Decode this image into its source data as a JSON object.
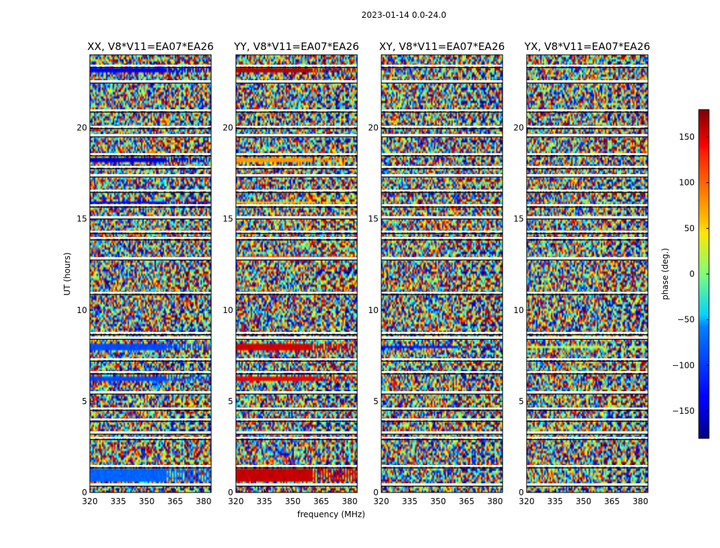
{
  "title": "2023-01-14 0.0-24.0",
  "chart_data": {
    "type": "heatmap",
    "xlabel": "frequency (MHz)",
    "ylabel": "UT (hours)",
    "xlim": [
      320,
      384
    ],
    "ylim": [
      0,
      24
    ],
    "x_ticks": [
      320,
      335,
      350,
      365,
      380
    ],
    "x_tick_labels": [
      "320",
      "335",
      "350",
      "365",
      "380"
    ],
    "y_ticks": [
      0,
      5,
      10,
      15,
      20
    ],
    "y_tick_labels": [
      "0",
      "5",
      "10",
      "15",
      "20"
    ],
    "panels": [
      {
        "title": "XX, V8*V11=EA07*EA26",
        "pol": "XX",
        "coherent_bands": [
          [
            0.6,
            1.3,
            -100
          ],
          [
            6.1,
            6.3,
            -110
          ],
          [
            7.8,
            8.2,
            -110
          ],
          [
            15.8,
            16.0,
            -135
          ],
          [
            18.1,
            18.3,
            -150
          ],
          [
            23.1,
            23.3,
            -140
          ]
        ]
      },
      {
        "title": "YY, V8*V11=EA07*EA26",
        "pol": "YY",
        "coherent_bands": [
          [
            0.6,
            1.3,
            155
          ],
          [
            6.1,
            6.3,
            140
          ],
          [
            7.8,
            8.2,
            150
          ],
          [
            12.7,
            12.9,
            110
          ],
          [
            15.8,
            16.0,
            70
          ],
          [
            18.1,
            18.3,
            80
          ],
          [
            23.1,
            23.3,
            160
          ]
        ]
      },
      {
        "title": "XY, V8*V11=EA07*EA26",
        "pol": "XY",
        "coherent_bands": [
          [
            7.9,
            8.1,
            -130
          ]
        ]
      },
      {
        "title": "YX, V8*V11=EA07*EA26",
        "pol": "YX",
        "coherent_bands": [
          [
            7.9,
            8.1,
            20
          ]
        ]
      }
    ],
    "data_gaps_hours": [
      0.45,
      1.45,
      3.0,
      3.3,
      4.0,
      4.6,
      5.5,
      6.6,
      7.3,
      8.5,
      8.75,
      10.95,
      12.85,
      13.95,
      14.3,
      15.1,
      15.75,
      16.55,
      17.4,
      17.85,
      18.55,
      19.6,
      20.05,
      20.95,
      22.55,
      23.4
    ],
    "colorbar": {
      "label": "phase (deg.)",
      "range": [
        -180,
        180
      ],
      "ticks": [
        150,
        100,
        50,
        0,
        -50,
        -100,
        -150
      ],
      "tick_labels": [
        "150",
        "100",
        "50",
        "0",
        "−50",
        "−100",
        "−150"
      ],
      "colormap": "jet"
    }
  }
}
